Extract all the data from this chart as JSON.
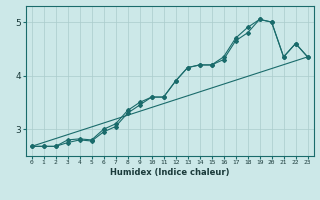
{
  "xlabel": "Humidex (Indice chaleur)",
  "ylabel": "",
  "xlim": [
    -0.5,
    23.5
  ],
  "ylim": [
    2.5,
    5.3
  ],
  "background_color": "#cce8e8",
  "grid_color": "#aacccc",
  "line_color": "#1a6b6b",
  "xticks": [
    0,
    1,
    2,
    3,
    4,
    5,
    6,
    7,
    8,
    9,
    10,
    11,
    12,
    13,
    14,
    15,
    16,
    17,
    18,
    19,
    20,
    21,
    22,
    23
  ],
  "yticks": [
    3,
    4,
    5
  ],
  "line1_x": [
    0,
    1,
    2,
    3,
    4,
    5,
    6,
    7,
    8,
    9,
    10,
    11,
    12,
    13,
    14,
    15,
    16,
    17,
    18,
    19,
    20,
    21,
    22,
    23
  ],
  "line1_y": [
    2.68,
    2.68,
    2.68,
    2.75,
    2.8,
    2.78,
    2.95,
    3.05,
    3.3,
    3.45,
    3.6,
    3.6,
    3.9,
    4.15,
    4.2,
    4.2,
    4.3,
    4.65,
    4.8,
    5.05,
    5.0,
    4.35,
    4.6,
    4.35
  ],
  "line2_x": [
    0,
    1,
    2,
    3,
    4,
    5,
    6,
    7,
    8,
    9,
    10,
    11,
    12,
    13,
    14,
    15,
    16,
    17,
    18,
    19,
    20,
    21,
    22,
    23
  ],
  "line2_y": [
    2.68,
    2.68,
    2.68,
    2.8,
    2.82,
    2.8,
    3.0,
    3.1,
    3.35,
    3.5,
    3.6,
    3.6,
    3.9,
    4.15,
    4.2,
    4.2,
    4.35,
    4.7,
    4.9,
    5.05,
    5.0,
    4.35,
    4.6,
    4.35
  ],
  "line3_x": [
    0,
    23
  ],
  "line3_y": [
    2.68,
    4.35
  ],
  "xlabel_fontsize": 6.0,
  "xlabel_fontweight": "bold",
  "xtick_fontsize": 4.5,
  "ytick_fontsize": 6.5
}
